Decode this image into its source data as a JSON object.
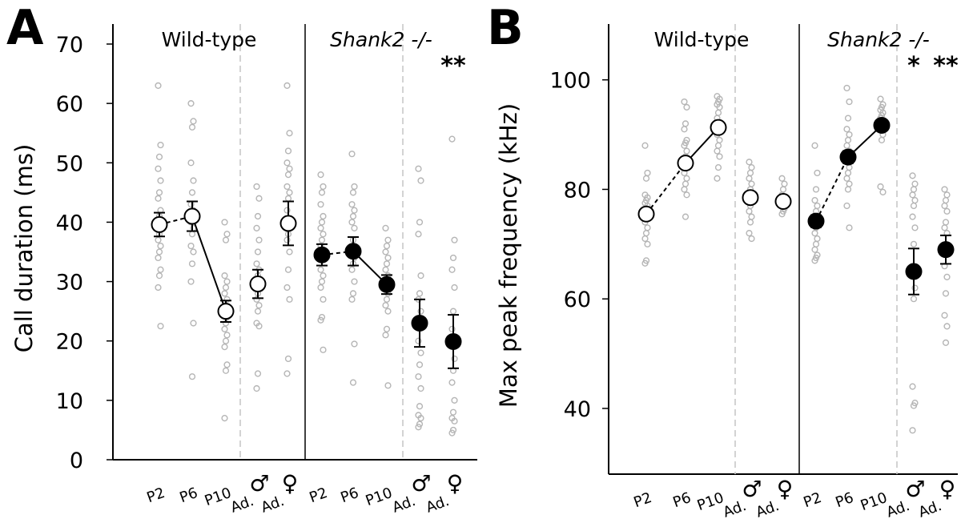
{
  "chart_data": [
    {
      "type": "scatter",
      "panel_label": "A",
      "ylabel": "Call duration (ms)",
      "ylim": [
        0,
        70
      ],
      "yticks": [
        0,
        10,
        20,
        30,
        40,
        50,
        60,
        70
      ],
      "groups": [
        {
          "name": "Wild-type",
          "style": "plain",
          "mean_style": "open",
          "categories": [
            {
              "label": "P2",
              "symbol": "",
              "mean": 39.6,
              "err": 2.0,
              "points": [
                63,
                53,
                51,
                49,
                47,
                45,
                44,
                42,
                41,
                40,
                39,
                38,
                37,
                36,
                35,
                34,
                32,
                31,
                29,
                22.5
              ]
            },
            {
              "label": "P6",
              "symbol": "",
              "mean": 41.0,
              "err": 2.5,
              "points": [
                60,
                57,
                56,
                50,
                47,
                45,
                43,
                42,
                41,
                40,
                39,
                38,
                36,
                35,
                33,
                30,
                23,
                14
              ]
            },
            {
              "label": "P10",
              "symbol": "",
              "mean": 25.0,
              "err": 1.8,
              "points": [
                40,
                38,
                37,
                31,
                30,
                29,
                28,
                27,
                26,
                25,
                24,
                23,
                22,
                21,
                20,
                19,
                16,
                15,
                7
              ]
            },
            {
              "label": "Ad.",
              "symbol": "♂",
              "mean": 29.6,
              "err": 2.4,
              "points": [
                46,
                44,
                41,
                39,
                37,
                35,
                33,
                32,
                31,
                30,
                29,
                28,
                27,
                26,
                25,
                23,
                22.5,
                14.5,
                12
              ]
            },
            {
              "label": "Ad.",
              "symbol": "♀",
              "mean": 39.8,
              "err": 3.7,
              "points": [
                63,
                55,
                52,
                50,
                49,
                48,
                46,
                45,
                44,
                42,
                40,
                38,
                37,
                35,
                32,
                29,
                27,
                17,
                14.5
              ]
            }
          ]
        },
        {
          "name": "Shank2 -/-",
          "style": "italic",
          "mean_style": "filled",
          "categories": [
            {
              "label": "P2",
              "symbol": "",
              "mean": 34.5,
              "err": 1.8,
              "points": [
                48,
                46,
                45,
                43,
                41,
                40,
                39,
                38,
                37,
                36,
                35,
                34,
                32,
                31,
                30,
                29,
                27,
                24,
                23.5,
                18.5
              ]
            },
            {
              "label": "P6",
              "symbol": "",
              "mean": 35.1,
              "err": 2.4,
              "points": [
                51.5,
                46,
                45,
                43,
                42,
                41,
                40,
                39,
                37,
                35,
                34,
                33,
                32,
                30,
                28,
                27,
                19.5,
                13
              ]
            },
            {
              "label": "P10",
              "symbol": "",
              "mean": 29.5,
              "err": 1.6,
              "points": [
                39,
                37,
                36,
                35,
                34,
                33,
                32,
                31,
                30,
                29,
                28,
                27,
                26,
                25,
                22,
                21,
                12.5
              ]
            },
            {
              "label": "Ad.",
              "symbol": "♂",
              "mean": 23.0,
              "err": 4.0,
              "points": [
                49,
                47,
                40,
                38,
                31,
                28,
                27,
                25,
                23,
                20,
                18,
                16,
                14,
                12,
                9,
                7.5,
                7,
                6,
                5.5
              ]
            },
            {
              "label": "Ad.",
              "symbol": "♀",
              "mean": 19.9,
              "err": 4.5,
              "points": [
                54,
                37,
                34,
                32,
                29,
                25,
                22,
                17,
                15,
                13,
                10,
                8,
                7,
                6.5,
                5,
                4.5
              ]
            }
          ]
        }
      ],
      "annotations": [
        {
          "text": "**",
          "group": 1,
          "category": 4
        }
      ]
    },
    {
      "type": "scatter",
      "panel_label": "B",
      "ylabel": "Max peak frequency (kHz)",
      "ylim": [
        28,
        108
      ],
      "yticks": [
        40,
        60,
        80,
        100
      ],
      "groups": [
        {
          "name": "Wild-type",
          "style": "plain",
          "mean_style": "open",
          "categories": [
            {
              "label": "P2",
              "symbol": "",
              "mean": 75.5,
              "err": 0.8,
              "points": [
                88,
                83,
                82,
                79,
                78.5,
                78,
                77.5,
                77,
                76.5,
                76,
                75.5,
                75,
                74,
                73,
                72,
                71,
                70,
                67,
                66.5
              ]
            },
            {
              "label": "P6",
              "symbol": "",
              "mean": 84.8,
              "err": 0.9,
              "points": [
                96,
                95,
                92,
                91,
                89,
                88.5,
                88,
                87,
                86,
                85,
                84.5,
                84,
                83,
                82,
                81,
                80,
                79,
                75
              ]
            },
            {
              "label": "P10",
              "symbol": "",
              "mean": 91.3,
              "err": 0.9,
              "points": [
                97,
                96.5,
                96,
                95.5,
                95,
                94,
                93,
                92,
                91,
                90,
                89,
                88,
                87,
                86,
                84,
                82
              ]
            },
            {
              "label": "Ad.",
              "symbol": "♂",
              "mean": 78.5,
              "err": 1.0,
              "points": [
                85,
                84,
                83,
                82,
                81,
                80,
                79,
                78,
                77,
                76,
                75,
                74,
                72,
                71
              ]
            },
            {
              "label": "Ad.",
              "symbol": "♀",
              "mean": 77.8,
              "err": 0.6,
              "points": [
                82,
                81,
                80,
                79,
                78,
                77.5,
                77,
                76.5,
                76,
                75.5
              ]
            }
          ]
        },
        {
          "name": "Shank2 -/-",
          "style": "italic",
          "mean_style": "filled",
          "categories": [
            {
              "label": "P2",
              "symbol": "",
              "mean": 74.2,
              "err": 1.1,
              "points": [
                88,
                83,
                80,
                78,
                77,
                76,
                75,
                74,
                73,
                72,
                71,
                70,
                69,
                68,
                67.5,
                67
              ]
            },
            {
              "label": "P6",
              "symbol": "",
              "mean": 85.9,
              "err": 1.1,
              "points": [
                98.5,
                96,
                93,
                91,
                90,
                89,
                88,
                87,
                86,
                85,
                84,
                83,
                82,
                81,
                80,
                77,
                73
              ]
            },
            {
              "label": "P10",
              "symbol": "",
              "mean": 91.7,
              "err": 0.8,
              "points": [
                96.5,
                95.5,
                95,
                94.5,
                94,
                93.5,
                93,
                92.5,
                92,
                91,
                90,
                89,
                80.5,
                79.5
              ]
            },
            {
              "label": "Ad.",
              "symbol": "♂",
              "mean": 65.0,
              "err": 4.2,
              "points": [
                82.5,
                81,
                80,
                79,
                78,
                77,
                75,
                73,
                70,
                66,
                62,
                60,
                44,
                41,
                40.5,
                36
              ]
            },
            {
              "label": "Ad.",
              "symbol": "♀",
              "mean": 69.0,
              "err": 2.6,
              "points": [
                80,
                79,
                78,
                77,
                76,
                74,
                73,
                72,
                70,
                66,
                64,
                61,
                57,
                55,
                52
              ]
            }
          ]
        }
      ],
      "annotations": [
        {
          "text": "*",
          "group": 1,
          "category": 3
        },
        {
          "text": "**",
          "group": 1,
          "category": 4
        }
      ]
    }
  ]
}
